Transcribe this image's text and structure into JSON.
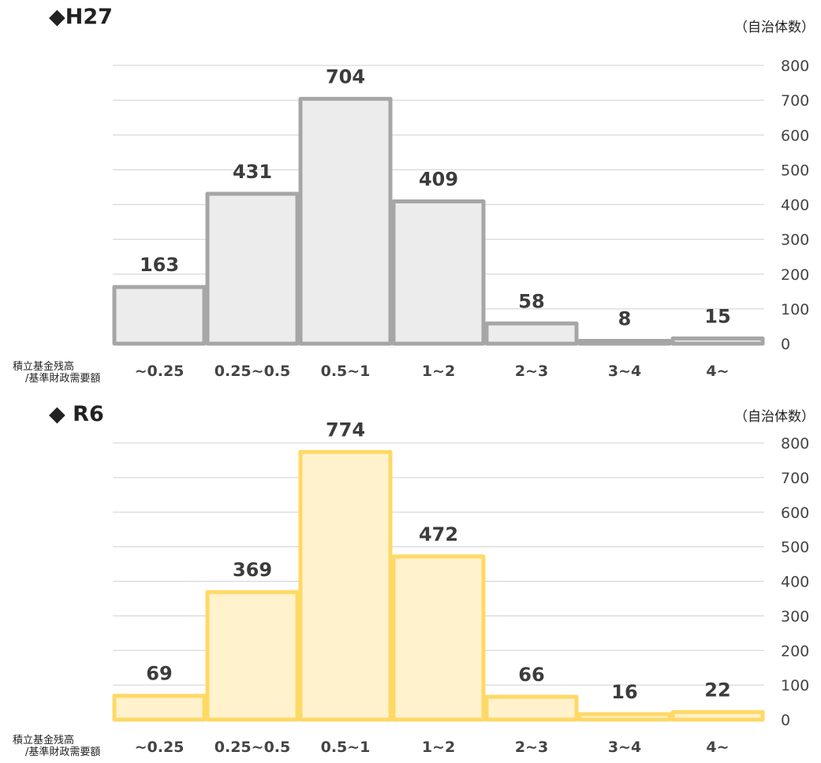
{
  "unit_label": "（自治体数）",
  "xaxis_caption_line1": "積立基金残高",
  "xaxis_caption_line2": "/基準財政需要額",
  "chart_data": [
    {
      "type": "bar",
      "title": "◆H27",
      "categories": [
        "~0.25",
        "0.25~0.5",
        "0.5~1",
        "1~2",
        "2~3",
        "3~4",
        "4~"
      ],
      "values": [
        163,
        431,
        704,
        409,
        58,
        8,
        15
      ],
      "ylim": [
        0,
        800
      ],
      "yticks": [
        0,
        100,
        200,
        300,
        400,
        500,
        600,
        700,
        800
      ],
      "y_axis_side": "right",
      "grid": true,
      "colors": {
        "fill": "#ececec",
        "stroke": "#a6a6a6"
      }
    },
    {
      "type": "bar",
      "title": "◆ R6",
      "categories": [
        "~0.25",
        "0.25~0.5",
        "0.5~1",
        "1~2",
        "2~3",
        "3~4",
        "4~"
      ],
      "values": [
        69,
        369,
        774,
        472,
        66,
        16,
        22
      ],
      "ylim": [
        0,
        800
      ],
      "yticks": [
        0,
        100,
        200,
        300,
        400,
        500,
        600,
        700,
        800
      ],
      "y_axis_side": "right",
      "grid": true,
      "colors": {
        "fill": "#fff2cc",
        "stroke": "#ffd966"
      }
    }
  ]
}
